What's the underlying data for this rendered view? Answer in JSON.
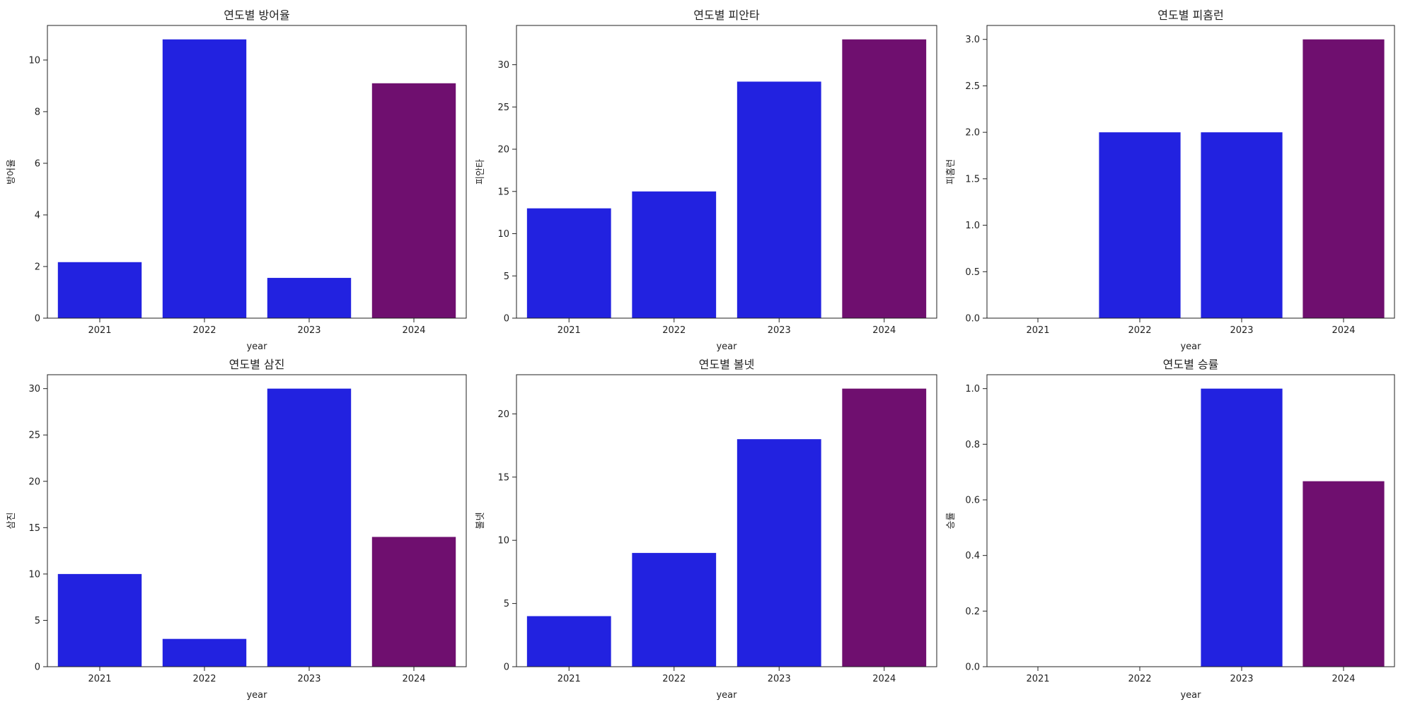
{
  "chart_data": [
    {
      "type": "bar",
      "title": "연도별 방어율",
      "xlabel": "year",
      "ylabel": "방어율",
      "categories": [
        "2021",
        "2022",
        "2023",
        "2024"
      ],
      "values": [
        2.17,
        10.8,
        1.56,
        9.1
      ],
      "ylim": [
        0,
        11.34
      ],
      "yticks": [
        0,
        2,
        4,
        6,
        8,
        10
      ],
      "ytick_labels": [
        "0",
        "2",
        "4",
        "6",
        "8",
        "10"
      ],
      "grid": false
    },
    {
      "type": "bar",
      "title": "연도별 피안타",
      "xlabel": "year",
      "ylabel": "피안타",
      "categories": [
        "2021",
        "2022",
        "2023",
        "2024"
      ],
      "values": [
        13,
        15,
        28,
        33
      ],
      "ylim": [
        0,
        34.65
      ],
      "yticks": [
        0,
        5,
        10,
        15,
        20,
        25,
        30
      ],
      "ytick_labels": [
        "0",
        "5",
        "10",
        "15",
        "20",
        "25",
        "30"
      ],
      "grid": false
    },
    {
      "type": "bar",
      "title": "연도별 피홈런",
      "xlabel": "year",
      "ylabel": "피홈런",
      "categories": [
        "2021",
        "2022",
        "2023",
        "2024"
      ],
      "values": [
        0,
        2,
        2,
        3
      ],
      "ylim": [
        0,
        3.15
      ],
      "yticks": [
        0,
        0.5,
        1,
        1.5,
        2,
        2.5,
        3
      ],
      "ytick_labels": [
        "0.0",
        "0.5",
        "1.0",
        "1.5",
        "2.0",
        "2.5",
        "3.0"
      ],
      "grid": false
    },
    {
      "type": "bar",
      "title": "연도별 삼진",
      "xlabel": "year",
      "ylabel": "삼진",
      "categories": [
        "2021",
        "2022",
        "2023",
        "2024"
      ],
      "values": [
        10,
        3,
        30,
        14
      ],
      "ylim": [
        0,
        31.5
      ],
      "yticks": [
        0,
        5,
        10,
        15,
        20,
        25,
        30
      ],
      "ytick_labels": [
        "0",
        "5",
        "10",
        "15",
        "20",
        "25",
        "30"
      ],
      "grid": false
    },
    {
      "type": "bar",
      "title": "연도별 볼넷",
      "xlabel": "year",
      "ylabel": "볼넷",
      "categories": [
        "2021",
        "2022",
        "2023",
        "2024"
      ],
      "values": [
        4,
        9,
        18,
        22
      ],
      "ylim": [
        0,
        23.1
      ],
      "yticks": [
        0,
        5,
        10,
        15,
        20
      ],
      "ytick_labels": [
        "0",
        "5",
        "10",
        "15",
        "20"
      ],
      "grid": false
    },
    {
      "type": "bar",
      "title": "연도별 승률",
      "xlabel": "year",
      "ylabel": "승률",
      "categories": [
        "2021",
        "2022",
        "2023",
        "2024"
      ],
      "values": [
        0,
        0,
        1.0,
        0.667
      ],
      "ylim": [
        0,
        1.05
      ],
      "yticks": [
        0,
        0.2,
        0.4,
        0.6,
        0.8,
        1
      ],
      "ytick_labels": [
        "0.0",
        "0.2",
        "0.4",
        "0.6",
        "0.8",
        "1.0"
      ],
      "grid": false
    }
  ],
  "colors": {
    "bar_default": "#2222e0",
    "bar_highlight": "#6f0f6f",
    "highlight_category": "2024",
    "axis": "#222222"
  }
}
